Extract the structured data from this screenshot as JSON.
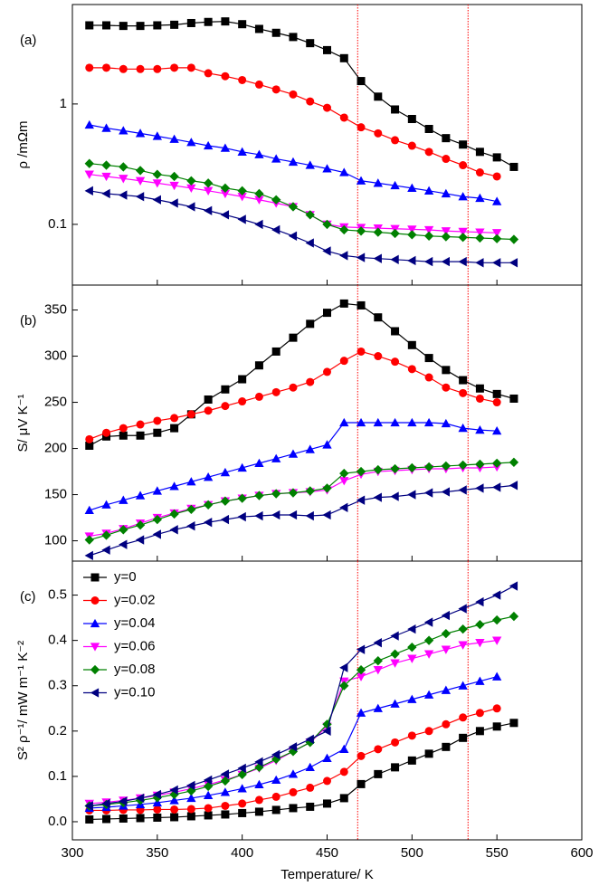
{
  "chart_data": [
    {
      "type": "line",
      "label": "(a)",
      "ylabel": "ρ /mΩm",
      "log_y": true,
      "x": [
        310,
        320,
        330,
        340,
        350,
        360,
        370,
        380,
        390,
        400,
        410,
        420,
        430,
        440,
        450,
        460,
        470,
        480,
        490,
        500,
        510,
        520,
        530,
        540,
        550,
        560
      ],
      "xlim": [
        300,
        600
      ],
      "xticks": [
        300,
        350,
        400,
        450,
        500,
        550,
        600
      ],
      "xtick_labels": false,
      "ylim": [
        0.0313,
        6.7
      ],
      "yticks": [
        0.1,
        1
      ],
      "vlines": [
        468,
        533
      ],
      "vline_color": "#ff0000",
      "series": [
        {
          "color": "#000000",
          "marker": "square",
          "values": [
            4.5,
            4.5,
            4.45,
            4.45,
            4.5,
            4.55,
            4.7,
            4.8,
            4.85,
            4.6,
            4.2,
            3.9,
            3.6,
            3.2,
            2.8,
            2.4,
            1.55,
            1.15,
            0.9,
            0.75,
            0.62,
            0.52,
            0.46,
            0.4,
            0.36,
            0.3
          ]
        },
        {
          "color": "#ff0000",
          "marker": "circle",
          "values": [
            2.0,
            2.0,
            1.95,
            1.95,
            1.95,
            2.0,
            2.0,
            1.8,
            1.7,
            1.58,
            1.45,
            1.32,
            1.2,
            1.05,
            0.93,
            0.77,
            0.64,
            0.57,
            0.5,
            0.45,
            0.4,
            0.35,
            0.31,
            0.27,
            0.25,
            null
          ]
        },
        {
          "color": "#0000ff",
          "marker": "triangle-up",
          "values": [
            0.67,
            0.63,
            0.6,
            0.57,
            0.54,
            0.51,
            0.48,
            0.45,
            0.43,
            0.4,
            0.38,
            0.35,
            0.33,
            0.31,
            0.29,
            0.27,
            0.23,
            0.22,
            0.21,
            0.2,
            0.19,
            0.18,
            0.17,
            0.165,
            0.155,
            null
          ]
        },
        {
          "color": "#ff00ff",
          "marker": "triangle-down",
          "values": [
            0.26,
            0.25,
            0.24,
            0.23,
            0.22,
            0.21,
            0.2,
            0.19,
            0.18,
            0.17,
            0.16,
            0.15,
            0.14,
            0.12,
            0.1,
            0.095,
            0.094,
            0.093,
            0.092,
            0.091,
            0.09,
            0.088,
            0.087,
            0.086,
            0.085,
            null
          ]
        },
        {
          "color": "#008000",
          "marker": "diamond",
          "values": [
            0.32,
            0.31,
            0.3,
            0.28,
            0.26,
            0.25,
            0.23,
            0.22,
            0.2,
            0.19,
            0.18,
            0.16,
            0.14,
            0.12,
            0.1,
            0.09,
            0.088,
            0.086,
            0.084,
            0.082,
            0.08,
            0.079,
            0.078,
            0.077,
            0.076,
            0.075
          ]
        },
        {
          "color": "#000080",
          "marker": "triangle-left",
          "values": [
            0.19,
            0.18,
            0.175,
            0.17,
            0.16,
            0.15,
            0.14,
            0.13,
            0.12,
            0.11,
            0.1,
            0.09,
            0.08,
            0.07,
            0.06,
            0.055,
            0.053,
            0.052,
            0.051,
            0.05,
            0.049,
            0.049,
            0.049,
            0.048,
            0.048,
            0.048
          ]
        }
      ]
    },
    {
      "type": "line",
      "label": "(b)",
      "ylabel": "S/ μV K⁻¹",
      "x": [
        310,
        320,
        330,
        340,
        350,
        360,
        370,
        380,
        390,
        400,
        410,
        420,
        430,
        440,
        450,
        460,
        470,
        480,
        490,
        500,
        510,
        520,
        530,
        540,
        550,
        560
      ],
      "xlim": [
        300,
        600
      ],
      "xticks": [
        300,
        350,
        400,
        450,
        500,
        550,
        600
      ],
      "xtick_labels": false,
      "ylim": [
        78,
        377
      ],
      "yticks": [
        100,
        150,
        200,
        250,
        300,
        350
      ],
      "vlines": [
        468,
        533
      ],
      "vline_color": "#ff0000",
      "series": [
        {
          "color": "#000000",
          "marker": "square",
          "values": [
            203,
            213,
            214,
            214,
            217,
            222,
            237,
            253,
            264,
            275,
            290,
            305,
            320,
            335,
            347,
            357,
            355,
            342,
            327,
            312,
            298,
            285,
            274,
            265,
            259,
            254
          ]
        },
        {
          "color": "#ff0000",
          "marker": "circle",
          "values": [
            210,
            217,
            222,
            226,
            230,
            233,
            237,
            241,
            246,
            251,
            256,
            261,
            266,
            272,
            283,
            295,
            305,
            300,
            294,
            286,
            277,
            266,
            260,
            254,
            250,
            null
          ]
        },
        {
          "color": "#0000ff",
          "marker": "triangle-up",
          "values": [
            133,
            139,
            144,
            149,
            154,
            159,
            164,
            169,
            174,
            179,
            184,
            189,
            194,
            199,
            204,
            228,
            228,
            228,
            228,
            228,
            228,
            227,
            222,
            220,
            219,
            null
          ]
        },
        {
          "color": "#ff00ff",
          "marker": "triangle-down",
          "values": [
            105,
            108,
            113,
            119,
            125,
            130,
            135,
            139,
            143,
            146,
            149,
            151,
            152,
            153,
            155,
            165,
            172,
            175,
            176,
            177,
            178,
            178,
            179,
            179,
            180,
            null
          ]
        },
        {
          "color": "#008000",
          "marker": "diamond",
          "values": [
            101,
            106,
            112,
            117,
            123,
            129,
            134,
            139,
            143,
            146,
            149,
            151,
            152,
            154,
            157,
            173,
            175,
            177,
            178,
            179,
            180,
            181,
            182,
            183,
            184,
            185
          ]
        },
        {
          "color": "#000080",
          "marker": "triangle-left",
          "values": [
            84,
            90,
            96,
            101,
            107,
            112,
            116,
            120,
            123,
            126,
            127,
            128,
            128,
            127,
            128,
            136,
            144,
            147,
            148,
            150,
            152,
            153,
            155,
            157,
            158,
            160
          ]
        }
      ]
    },
    {
      "type": "line",
      "label": "(c)",
      "ylabel": "S² ρ⁻¹/ mW m⁻¹ K⁻²",
      "xlabel": "Temperature/ K",
      "legend": "upper left",
      "x": [
        310,
        320,
        330,
        340,
        350,
        360,
        370,
        380,
        390,
        400,
        410,
        420,
        430,
        440,
        450,
        460,
        470,
        480,
        490,
        500,
        510,
        520,
        530,
        540,
        550,
        560
      ],
      "xlim": [
        300,
        600
      ],
      "xticks": [
        300,
        350,
        400,
        450,
        500,
        550,
        600
      ],
      "xtick_labels": true,
      "ylim": [
        -0.04,
        0.575
      ],
      "yticks": [
        {
          "value": 0,
          "label": "0.0"
        },
        0.1,
        0.2,
        0.3,
        0.4,
        0.5
      ],
      "vlines": [
        468,
        533
      ],
      "vline_color": "#ff0000",
      "series": [
        {
          "name": "y=0",
          "color": "#000000",
          "marker": "square",
          "values": [
            0.005,
            0.006,
            0.007,
            0.008,
            0.009,
            0.01,
            0.012,
            0.014,
            0.016,
            0.019,
            0.022,
            0.026,
            0.03,
            0.033,
            0.04,
            0.052,
            0.083,
            0.105,
            0.12,
            0.135,
            0.15,
            0.165,
            0.185,
            0.2,
            0.21,
            0.218
          ]
        },
        {
          "name": "y=0.02",
          "color": "#ff0000",
          "marker": "circle",
          "values": [
            0.025,
            0.025,
            0.026,
            0.026,
            0.027,
            0.027,
            0.028,
            0.03,
            0.035,
            0.04,
            0.048,
            0.055,
            0.065,
            0.075,
            0.09,
            0.11,
            0.145,
            0.16,
            0.175,
            0.19,
            0.2,
            0.215,
            0.23,
            0.24,
            0.25,
            null
          ]
        },
        {
          "name": "y=0.04",
          "color": "#0000ff",
          "marker": "triangle-up",
          "values": [
            0.03,
            0.032,
            0.035,
            0.038,
            0.042,
            0.047,
            0.052,
            0.058,
            0.065,
            0.073,
            0.082,
            0.092,
            0.105,
            0.12,
            0.14,
            0.16,
            0.24,
            0.25,
            0.26,
            0.27,
            0.28,
            0.29,
            0.3,
            0.31,
            0.32,
            null
          ]
        },
        {
          "name": "y=0.06",
          "color": "#ff00ff",
          "marker": "triangle-down",
          "values": [
            0.04,
            0.043,
            0.047,
            0.052,
            0.058,
            0.065,
            0.073,
            0.082,
            0.092,
            0.104,
            0.118,
            0.135,
            0.155,
            0.175,
            0.21,
            0.31,
            0.32,
            0.335,
            0.35,
            0.36,
            0.37,
            0.38,
            0.39,
            0.395,
            0.4,
            null
          ]
        },
        {
          "name": "y=0.08",
          "color": "#008000",
          "marker": "diamond",
          "values": [
            0.035,
            0.038,
            0.042,
            0.047,
            0.053,
            0.06,
            0.068,
            0.078,
            0.09,
            0.104,
            0.12,
            0.138,
            0.155,
            0.175,
            0.215,
            0.3,
            0.335,
            0.355,
            0.37,
            0.385,
            0.4,
            0.415,
            0.425,
            0.435,
            0.445,
            0.453
          ]
        },
        {
          "name": "y=0.10",
          "color": "#000080",
          "marker": "triangle-left",
          "values": [
            0.035,
            0.04,
            0.045,
            0.052,
            0.06,
            0.07,
            0.08,
            0.092,
            0.105,
            0.118,
            0.132,
            0.148,
            0.165,
            0.182,
            0.2,
            0.34,
            0.38,
            0.395,
            0.41,
            0.425,
            0.44,
            0.455,
            0.47,
            0.485,
            0.5,
            0.52
          ]
        }
      ]
    }
  ]
}
